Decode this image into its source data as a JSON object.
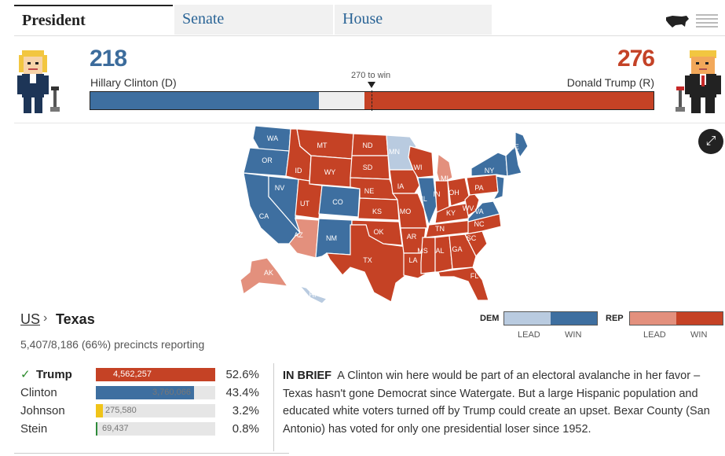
{
  "tabs": [
    {
      "label": "President",
      "active": true
    },
    {
      "label": "Senate",
      "active": false
    },
    {
      "label": "House",
      "active": false
    }
  ],
  "icons": {
    "map_toggle": "us-map-icon",
    "list_toggle": "list-icon",
    "expand": "expand-icon"
  },
  "totals": {
    "dem": {
      "votes": "218",
      "name": "Hillary Clinton (D)",
      "share": 218
    },
    "rep": {
      "votes": "276",
      "name": "Donald Trump (R)",
      "share": 276
    },
    "threshold_label": "270 to win",
    "total": 538
  },
  "colors": {
    "dem_win": "#3e6fa0",
    "dem_lead": "#b9cbe0",
    "rep_win": "#c54225",
    "rep_lead": "#e3907d",
    "undecided": "#eeeeee"
  },
  "map": {
    "states": [
      "WA",
      "OR",
      "CA",
      "NV",
      "ID",
      "MT",
      "WY",
      "UT",
      "AZ",
      "CO",
      "NM",
      "ND",
      "SD",
      "NE",
      "KS",
      "OK",
      "TX",
      "MN",
      "IA",
      "MO",
      "AR",
      "LA",
      "WI",
      "IL",
      "MS",
      "AL",
      "MI",
      "IN",
      "OH",
      "KY",
      "TN",
      "GA",
      "FL",
      "SC",
      "NC",
      "VA",
      "WV",
      "PA",
      "NY",
      "ME",
      "AK",
      "HI"
    ]
  },
  "breadcrumb": {
    "parent": "US",
    "current": "Texas"
  },
  "precincts": "5,407/8,186 (66%) precincts reporting",
  "legend": {
    "dem_label": "DEM",
    "rep_label": "REP",
    "lead_label": "LEAD",
    "win_label": "WIN"
  },
  "results": [
    {
      "name": "Trump",
      "votes": "4,562,257",
      "pct": "52.6%",
      "winner": true,
      "share": 0.526,
      "color": "#c54225"
    },
    {
      "name": "Clinton",
      "votes": "3,760,066",
      "pct": "43.4%",
      "winner": false,
      "share": 0.434,
      "color": "#3e6fa0"
    },
    {
      "name": "Johnson",
      "votes": "275,580",
      "pct": "3.2%",
      "winner": false,
      "share": 0.032,
      "color": "#f0c419"
    },
    {
      "name": "Stein",
      "votes": "69,437",
      "pct": "0.8%",
      "winner": false,
      "share": 0.008,
      "color": "#2e8b3a"
    }
  ],
  "brief": {
    "label": "IN BRIEF",
    "text": "A Clinton win here would be part of an electoral avalanche in her favor – Texas hasn't gone Democrat since Watergate. But a large Hispanic population and educated white voters turned off by Trump could create an upset. Bexar County (San Antonio) has voted for only one presidential loser since 1952."
  }
}
